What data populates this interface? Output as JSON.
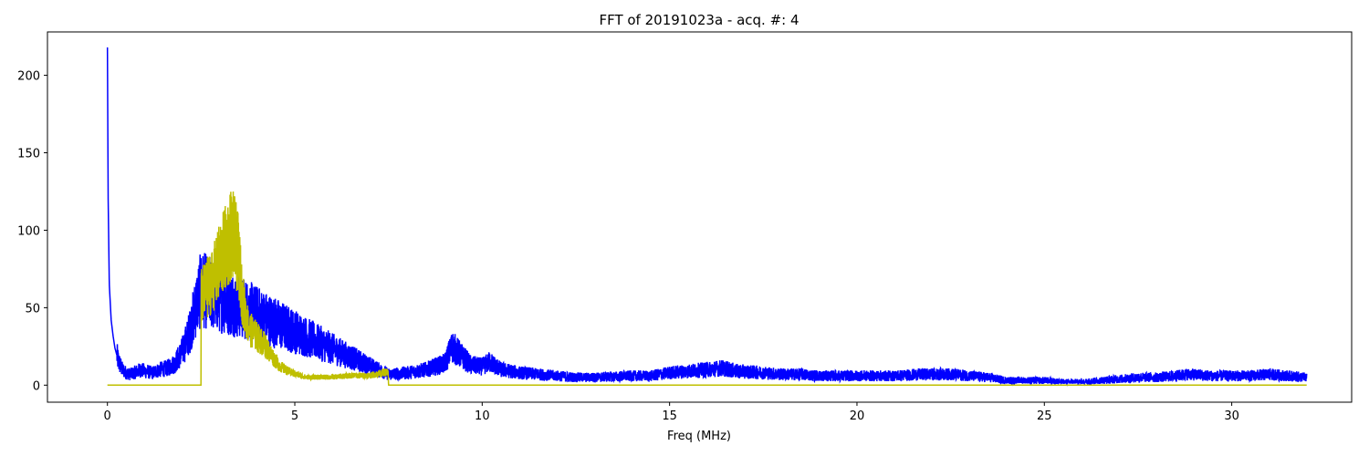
{
  "chart_data": {
    "type": "line",
    "title": "FFT of 20191023a - acq. #: 4",
    "xlabel": "Freq (MHz)",
    "ylabel": "",
    "xlim": [
      -1.6,
      33.2
    ],
    "ylim": [
      -11,
      228
    ],
    "xticks": [
      0,
      5,
      10,
      15,
      20,
      25,
      30
    ],
    "yticks": [
      0,
      50,
      100,
      150,
      200
    ],
    "grid": false,
    "colors": {
      "spectrum": "#0000ff",
      "filtered": "#bfbf00",
      "background": "#ffffff",
      "axes": "#000000"
    },
    "series": [
      {
        "color": "#0000ff",
        "x": [
          0,
          0.02,
          0.05,
          0.1,
          0.15,
          0.2,
          0.3,
          0.4,
          0.5,
          0.6,
          0.7,
          0.8,
          0.9,
          1.0,
          1.2,
          1.4,
          1.6,
          1.8,
          1.9,
          2.0,
          2.1,
          2.2,
          2.3,
          2.4,
          2.5,
          7.5,
          8.0,
          8.5,
          9.0,
          9.2,
          9.4,
          9.7,
          10.0,
          10.2,
          10.5,
          11.0,
          11.5,
          12.0,
          12.5,
          13.0,
          14.0,
          14.5,
          15.0,
          15.5,
          16.0,
          16.4,
          16.8,
          17.5,
          18.0,
          18.5,
          19.0,
          20.0,
          21.0,
          21.7,
          22.5,
          23.0,
          23.5,
          24.0,
          24.5,
          25.0,
          25.5,
          26.0,
          26.5,
          27.0,
          27.5,
          28.0,
          28.5,
          28.8,
          29.5,
          30.0,
          30.5,
          31.0,
          31.5,
          32.0
        ],
        "values": [
          218,
          120,
          65,
          42,
          32,
          24,
          15,
          10,
          8,
          7,
          8,
          9,
          10,
          9,
          8,
          10,
          11,
          14,
          18,
          22,
          28,
          35,
          45,
          55,
          62,
          7,
          8,
          10,
          14,
          25,
          20,
          13,
          12,
          15,
          10,
          8,
          7,
          6,
          5,
          5,
          6,
          6,
          8,
          9,
          10,
          11,
          9,
          8,
          7,
          7,
          6,
          6,
          6,
          7,
          7,
          6,
          5,
          3,
          3,
          3,
          2,
          2,
          3,
          4,
          5,
          5,
          6,
          7,
          6,
          6,
          6,
          7,
          6,
          5
        ],
        "noise": 6
      },
      {
        "color": "#bfbf00",
        "x": [
          0,
          2.49,
          2.5,
          2.7,
          2.9,
          3.0,
          3.2,
          3.3,
          3.4,
          3.5,
          3.6,
          3.7,
          3.8,
          4.0,
          4.2,
          4.4,
          4.6,
          4.8,
          5.0,
          5.3,
          5.6,
          6.0,
          6.5,
          7.0,
          7.2,
          7.4,
          7.49,
          7.5,
          32.0
        ],
        "values": [
          0,
          0,
          55,
          62,
          70,
          78,
          88,
          95,
          90,
          80,
          55,
          42,
          35,
          30,
          25,
          18,
          12,
          9,
          7,
          5,
          5,
          5,
          6,
          6,
          7,
          8,
          8,
          0,
          0
        ],
        "noise": 16,
        "active_range": [
          2.5,
          7.5
        ]
      }
    ]
  }
}
